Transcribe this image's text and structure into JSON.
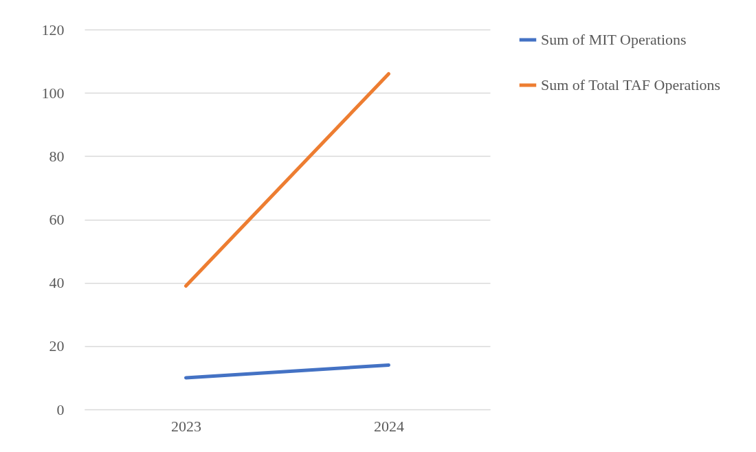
{
  "chart_data": {
    "type": "line",
    "categories": [
      "2023",
      "2024"
    ],
    "series": [
      {
        "name": "Sum of MIT Operations",
        "color": "#4472c4",
        "values": [
          10,
          14
        ]
      },
      {
        "name": "Sum of Total TAF Operations",
        "color": "#ed7d31",
        "values": [
          39,
          106
        ]
      }
    ],
    "ylim": [
      0,
      120
    ],
    "yticks": [
      0,
      20,
      40,
      60,
      80,
      100,
      120
    ],
    "grid": "y",
    "legend": "right",
    "marker": "none"
  }
}
